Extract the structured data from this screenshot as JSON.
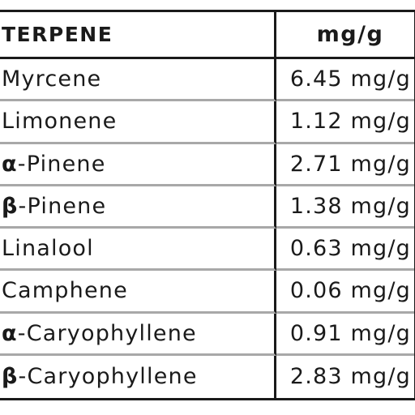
{
  "table": {
    "headers": {
      "terpene": "TERPENE",
      "amount": "mg/g"
    },
    "rows": [
      {
        "prefix": "",
        "name": "Myrcene",
        "amount": "6.45 mg/g"
      },
      {
        "prefix": "",
        "name": "Limonene",
        "amount": "1.12 mg/g"
      },
      {
        "prefix": "α",
        "name": "-Pinene",
        "amount": "2.71 mg/g"
      },
      {
        "prefix": "β",
        "name": "-Pinene",
        "amount": "1.38 mg/g"
      },
      {
        "prefix": "",
        "name": "Linalool",
        "amount": "0.63 mg/g"
      },
      {
        "prefix": "",
        "name": "Camphene",
        "amount": "0.06 mg/g"
      },
      {
        "prefix": "α",
        "name": "-Caryophyllene",
        "amount": "0.91 mg/g"
      },
      {
        "prefix": "β",
        "name": "-Caryophyllene",
        "amount": "2.83 mg/g"
      }
    ]
  }
}
